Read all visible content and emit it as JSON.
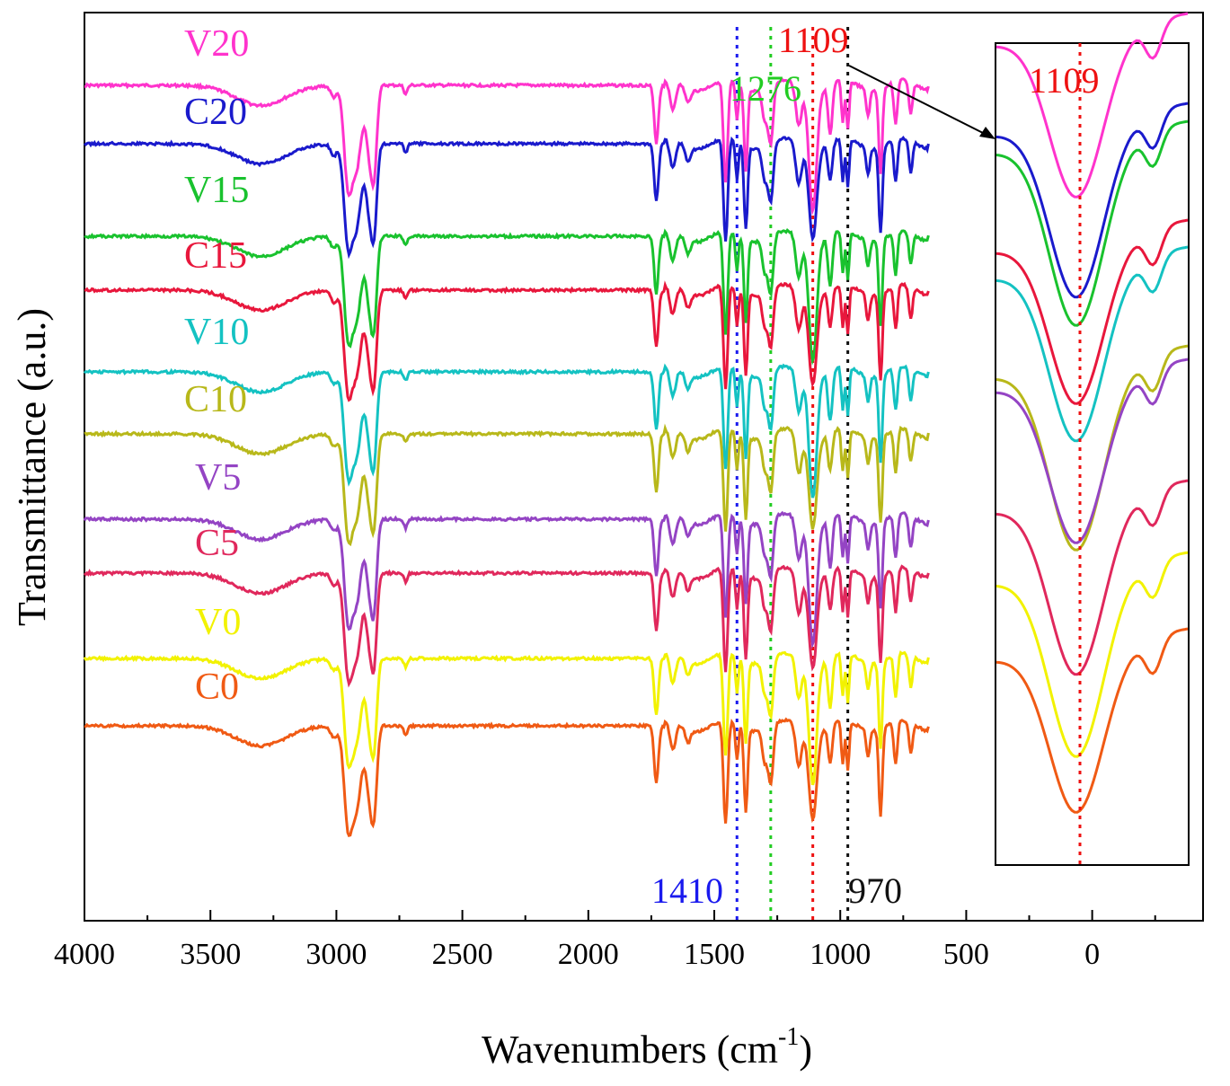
{
  "chart_data": {
    "type": "line",
    "title": "",
    "xlabel": "Wavenumbers (cm",
    "xlabel_sup": "-1",
    "xlabel_close": ")",
    "ylabel": "Transmittance (a.u.)",
    "x_ticks": [
      "4000",
      "3500",
      "3000",
      "2500",
      "2000",
      "1500",
      "1000",
      "500",
      "0"
    ],
    "xlim": [
      4000,
      -440
    ],
    "series": [
      {
        "name": "V20",
        "color": "#ff33cc",
        "label": "V20",
        "baseline": 95
      },
      {
        "name": "C20",
        "color": "#1a1acc",
        "label": "C20",
        "baseline": 160
      },
      {
        "name": "V15",
        "color": "#19c22e",
        "label": "V15",
        "baseline": 263
      },
      {
        "name": "C15",
        "color": "#e8173c",
        "label": "C15",
        "baseline": 323
      },
      {
        "name": "V10",
        "color": "#14c2c2",
        "label": "V10",
        "baseline": 414
      },
      {
        "name": "C10",
        "color": "#b8b81a",
        "label": "C10",
        "baseline": 483
      },
      {
        "name": "V5",
        "color": "#9444c4",
        "label": "V5",
        "baseline": 578
      },
      {
        "name": "C5",
        "color": "#e0285c",
        "label": "C5",
        "baseline": 638
      },
      {
        "name": "V0",
        "color": "#f2f200",
        "label": "V0",
        "baseline": 733
      },
      {
        "name": "C0",
        "color": "#f05a14",
        "label": "C0",
        "baseline": 808
      }
    ],
    "reference_lines": [
      {
        "x": 1410,
        "color": "#1a1aee",
        "label": "1410"
      },
      {
        "x": 1276,
        "color": "#22cc22",
        "label": "1276"
      },
      {
        "x": 1109,
        "color": "#ee1111",
        "label": "1109"
      },
      {
        "x": 970,
        "color": "#111111",
        "label": "970"
      }
    ],
    "inset": {
      "label": "1109",
      "color": "#ee1111"
    }
  }
}
